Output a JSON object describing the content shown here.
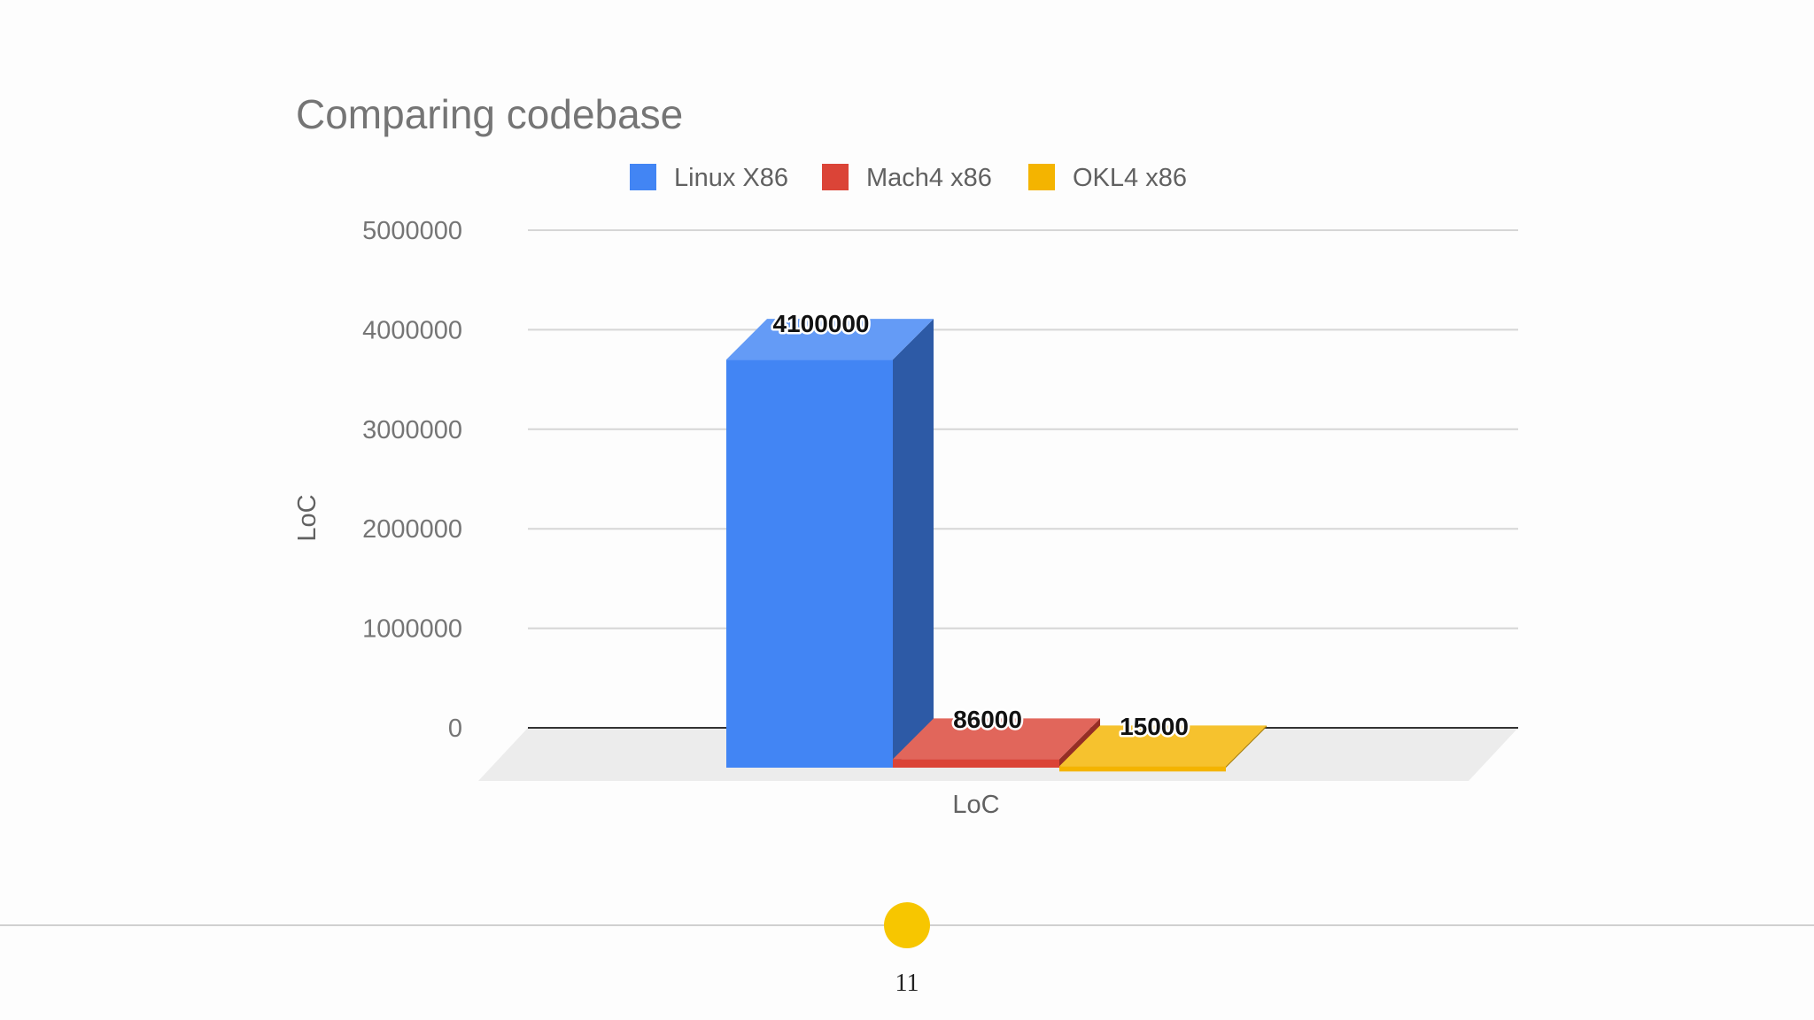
{
  "chart_data": {
    "type": "bar",
    "title": "Comparing codebase",
    "categories": [
      "LoC"
    ],
    "xlabel": "LoC",
    "ylabel": "LoC",
    "ylim": [
      0,
      5000000
    ],
    "yticks": [
      "0",
      "1000000",
      "2000000",
      "3000000",
      "4000000",
      "5000000"
    ],
    "grid": true,
    "legend_position": "top",
    "series": [
      {
        "name": "Linux X86",
        "values": [
          4100000
        ],
        "data_label": "4100000",
        "color": "#4285f4"
      },
      {
        "name": "Mach4 x86",
        "values": [
          86000
        ],
        "data_label": "86000",
        "color": "#db4437"
      },
      {
        "name": "OKL4 x86",
        "values": [
          15000
        ],
        "data_label": "15000",
        "color": "#f4b400"
      }
    ]
  },
  "footer": {
    "page_number": "11",
    "dot_color": "#f7c600"
  }
}
